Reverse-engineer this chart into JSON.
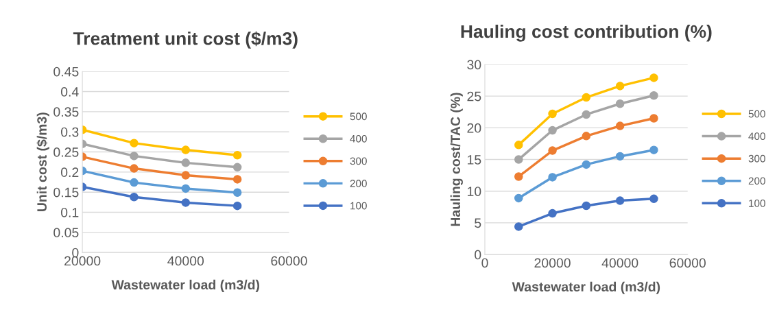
{
  "chart_data": [
    {
      "type": "line",
      "title": "Treatment unit cost ($/m3)",
      "xlabel": "Wastewater load (m3/d)",
      "ylabel": "Unit cost ($/m3)",
      "x": [
        20000,
        30000,
        40000,
        50000
      ],
      "xlim": [
        20000,
        60000
      ],
      "xticks": [
        20000,
        40000,
        60000
      ],
      "ylim": [
        0,
        0.45
      ],
      "yticks": [
        0,
        0.05,
        0.1,
        0.15,
        0.2,
        0.25,
        0.3,
        0.35,
        0.4,
        0.45
      ],
      "grid": "y",
      "legend": "right",
      "marker": "circle",
      "line_style": "solid",
      "series": [
        {
          "name": "500",
          "color": "#ffc000",
          "values": [
            0.305,
            0.272,
            0.255,
            0.242
          ]
        },
        {
          "name": "400",
          "color": "#a5a5a5",
          "values": [
            0.27,
            0.24,
            0.223,
            0.212
          ]
        },
        {
          "name": "300",
          "color": "#ed7d31",
          "values": [
            0.238,
            0.209,
            0.192,
            0.182
          ]
        },
        {
          "name": "200",
          "color": "#5b9bd5",
          "values": [
            0.203,
            0.174,
            0.159,
            0.149
          ]
        },
        {
          "name": "100",
          "color": "#4472c4",
          "values": [
            0.163,
            0.138,
            0.124,
            0.116
          ]
        }
      ]
    },
    {
      "type": "line",
      "title": "Hauling cost contribution (%)",
      "xlabel": "Wastewater load (m3/d)",
      "ylabel": "Hauling cost/TAC (%)",
      "x": [
        10000,
        20000,
        30000,
        40000,
        50000
      ],
      "xlim": [
        0,
        60000
      ],
      "xticks": [
        0,
        20000,
        40000,
        60000
      ],
      "ylim": [
        0,
        30
      ],
      "yticks": [
        0,
        5,
        10,
        15,
        20,
        25,
        30
      ],
      "grid": "y",
      "legend": "right",
      "marker": "circle",
      "line_style": "solid",
      "series": [
        {
          "name": "500",
          "color": "#ffc000",
          "values": [
            17.3,
            22.2,
            24.8,
            26.6,
            27.9
          ]
        },
        {
          "name": "400",
          "color": "#a5a5a5",
          "values": [
            15.0,
            19.6,
            22.1,
            23.8,
            25.1
          ]
        },
        {
          "name": "300",
          "color": "#ed7d31",
          "values": [
            12.3,
            16.4,
            18.7,
            20.3,
            21.5
          ]
        },
        {
          "name": "200",
          "color": "#5b9bd5",
          "values": [
            8.9,
            12.2,
            14.2,
            15.5,
            16.5
          ]
        },
        {
          "name": "100",
          "color": "#4472c4",
          "values": [
            4.4,
            6.5,
            7.7,
            8.5,
            8.8
          ]
        }
      ]
    }
  ]
}
